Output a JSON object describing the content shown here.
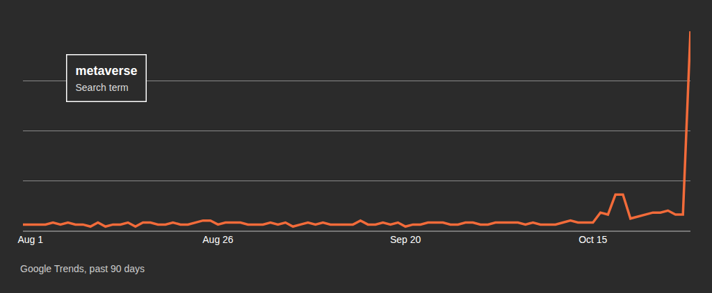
{
  "chart_data": {
    "type": "line",
    "categories": [
      null,
      "Aug 1",
      null,
      null,
      null,
      null,
      null,
      null,
      null,
      null,
      null,
      null,
      null,
      null,
      null,
      null,
      null,
      null,
      null,
      null,
      null,
      null,
      null,
      null,
      null,
      null,
      "Aug 26",
      null,
      null,
      null,
      null,
      null,
      null,
      null,
      null,
      null,
      null,
      null,
      null,
      null,
      null,
      null,
      null,
      null,
      null,
      null,
      null,
      null,
      null,
      null,
      null,
      "Sep 20",
      null,
      null,
      null,
      null,
      null,
      null,
      null,
      null,
      null,
      null,
      null,
      null,
      null,
      null,
      null,
      null,
      null,
      null,
      null,
      null,
      null,
      null,
      null,
      null,
      "Oct 15",
      null,
      null,
      null,
      null,
      null,
      null,
      null,
      null,
      null,
      null,
      null,
      null,
      null
    ],
    "series": [
      {
        "name": "metaverse",
        "color": "#f26b3a",
        "values": [
          3,
          3,
          3,
          3,
          4,
          3,
          4,
          3,
          3,
          2,
          4,
          2,
          3,
          3,
          4,
          2,
          4,
          4,
          3,
          3,
          4,
          3,
          3,
          4,
          5,
          5,
          3,
          4,
          4,
          4,
          3,
          3,
          3,
          4,
          3,
          4,
          2,
          3,
          4,
          3,
          4,
          3,
          3,
          3,
          3,
          5,
          3,
          3,
          4,
          3,
          4,
          2,
          3,
          3,
          4,
          4,
          4,
          3,
          3,
          4,
          4,
          3,
          3,
          4,
          4,
          4,
          4,
          3,
          4,
          3,
          3,
          3,
          4,
          5,
          4,
          4,
          4,
          9,
          8,
          18,
          18,
          6,
          7,
          8,
          9,
          9,
          10,
          8,
          8,
          100
        ]
      }
    ],
    "annotations": [
      "Search term",
      "Google Trends, past 90 days"
    ],
    "ylim": [
      0,
      100
    ],
    "yticks": [
      0,
      25,
      50,
      75,
      100
    ],
    "grid": true,
    "legend": "upper left",
    "tick_labels": "x"
  }
}
